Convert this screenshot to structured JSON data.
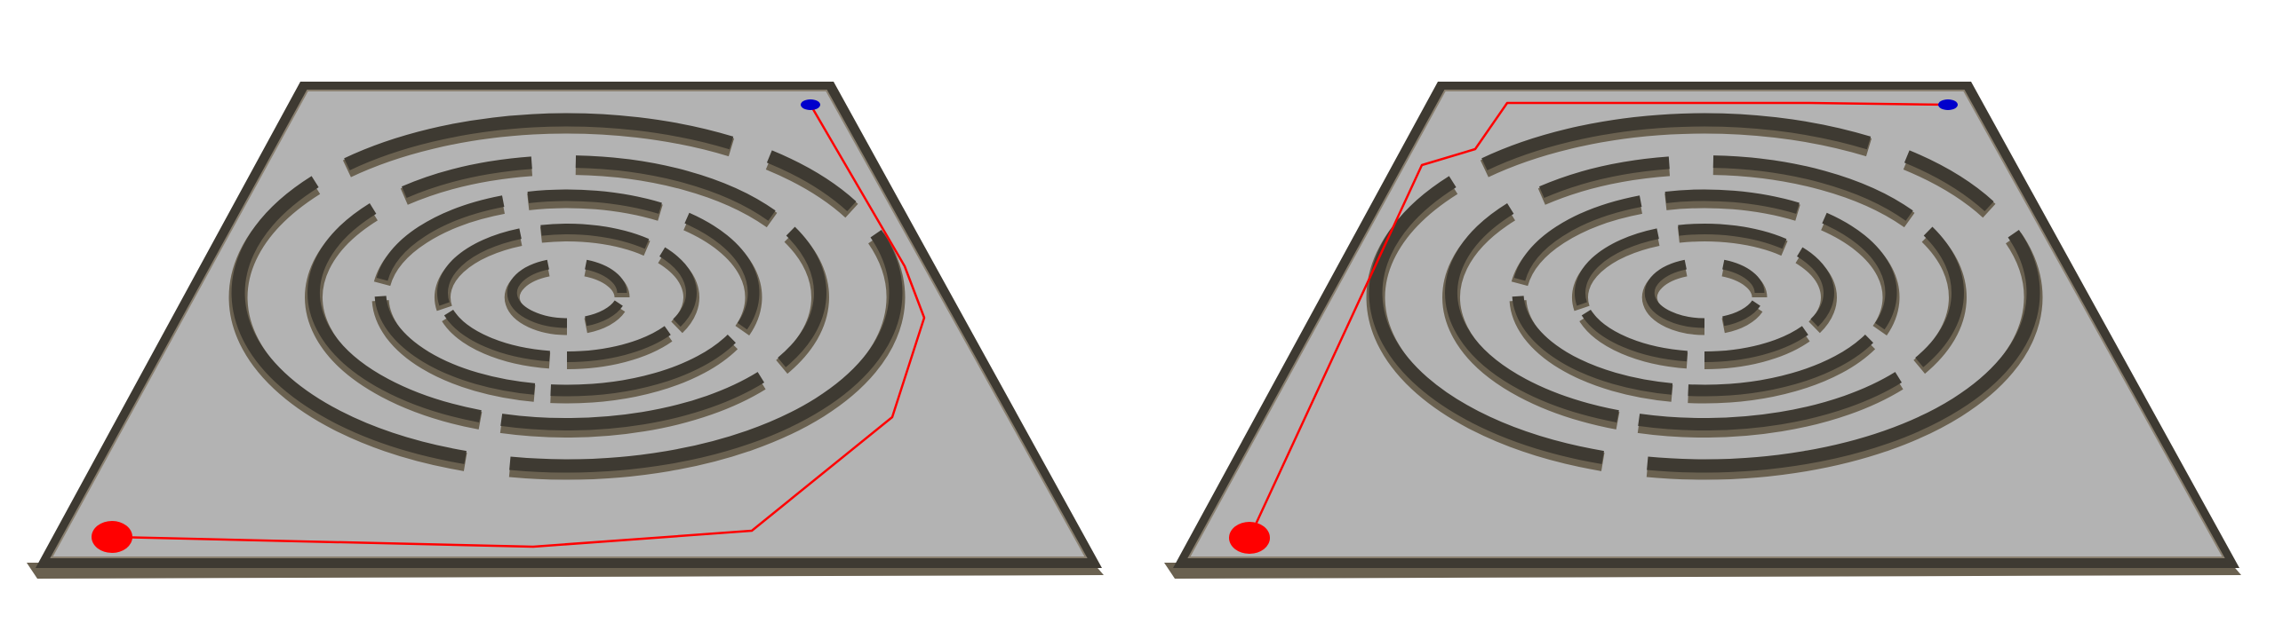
{
  "colors": {
    "background": "#ffffff",
    "floor": "#b3b3b3",
    "wall_top": "#3e3a32",
    "wall_side": "#6a6150",
    "wall_light": "#8a8070",
    "start_marker": "#ff0000",
    "goal_marker": "#0000cc",
    "path_line": "#ff0000"
  },
  "panels": [
    {
      "id": "left",
      "path_route": "clockwise-via-right-outer-corridor"
    },
    {
      "id": "right",
      "path_route": "via-left-side-and-top-edge"
    }
  ],
  "markers": {
    "start": {
      "color_name": "red",
      "shape": "ellipse"
    },
    "goal": {
      "color_name": "blue",
      "shape": "ellipse"
    }
  },
  "maze": {
    "type": "circular-ring-maze",
    "ring_count": 4,
    "has_center_piece": true
  }
}
